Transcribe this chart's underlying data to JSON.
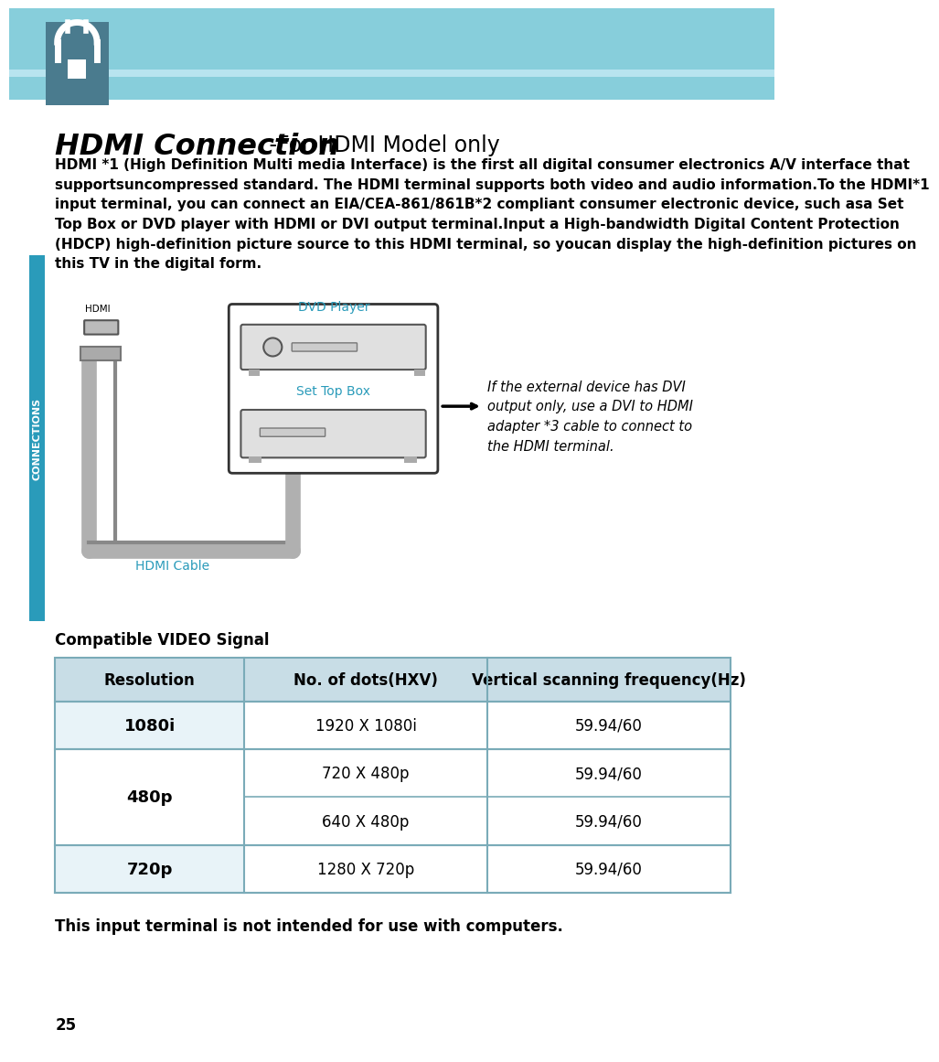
{
  "bg_color": "#ffffff",
  "header_bg_color": "#87cedb",
  "header_dark_bg": "#4a7b8e",
  "sidebar_color": "#2a9bba",
  "page_number": "25",
  "title_bold": "HDMI Connection",
  "title_dash": " - ",
  "title_normal": "For HDMI Model only",
  "wrapped_body": "HDMI *1 (High Definition Multi media Interface) is the first all digital consumer electronics A/V interface that\nsupportsuncompressed standard. The HDMI terminal supports both video and audio information.To the HDMI*1\ninput terminal, you can connect an EIA/CEA-861/861B*2 compliant consumer electronic device, such asa Set\nTop Box or DVD player with HDMI or DVI output terminal.Input a High-bandwidth Digital Content Protection\n(HDCP) high-definition picture source to this HDMI terminal, so youcan display the high-definition pictures on\nthis TV in the digital form.",
  "compatible_label": "Compatible VIDEO Signal",
  "table_headers": [
    "Resolution",
    "No. of dots(HXV)",
    "Vertical scanning frequency(Hz)"
  ],
  "table_header_bg": "#c8dde6",
  "table_alt_bg": "#e8f3f8",
  "table_white_bg": "#ffffff",
  "note_text": "This input terminal is not intended for use with computers.",
  "dvd_player_label": "DVD Player",
  "set_top_box_label": "Set Top Box",
  "hdmi_cable_label": "HDMI Cable",
  "hdmi_label": "HDMI",
  "side_note": "If the external device has DVI\noutput only, use a DVI to HDMI\nadapter *3 cable to connect to\nthe HDMI terminal.",
  "connections_label": "CONNECTIONS",
  "table_border_color": "#7aabb8"
}
